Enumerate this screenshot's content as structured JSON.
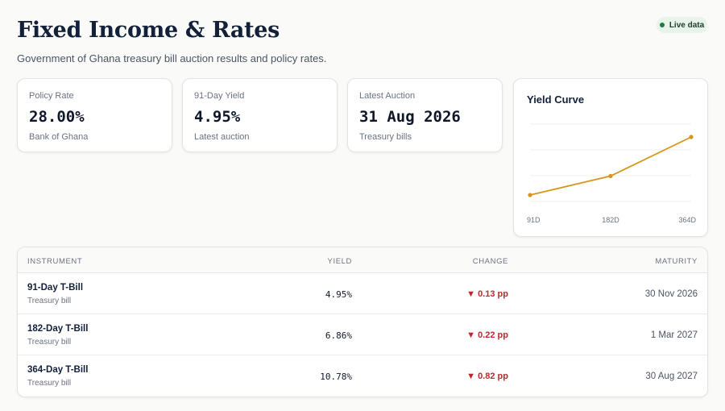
{
  "header": {
    "title": "Fixed Income & Rates",
    "subtitle": "Government of Ghana treasury bill auction results and policy rates.",
    "live_label": "Live data"
  },
  "stats": [
    {
      "label": "Policy Rate",
      "value": "28.00%",
      "sub": "Bank of Ghana"
    },
    {
      "label": "91-Day Yield",
      "value": "4.95%",
      "sub": "Latest auction"
    },
    {
      "label": "Latest Auction",
      "value": "31 Aug 2026",
      "sub": "Treasury bills"
    }
  ],
  "chart_data": {
    "type": "line",
    "title": "Yield Curve",
    "categories": [
      "91D",
      "182D",
      "364D"
    ],
    "values": [
      4.95,
      6.86,
      10.78
    ],
    "grid": true,
    "color": "#d4961b"
  },
  "table": {
    "headers": {
      "instrument": "INSTRUMENT",
      "yield": "YIELD",
      "change": "CHANGE",
      "maturity": "MATURITY"
    },
    "change_icon": "triangle-down-icon",
    "rows": [
      {
        "name": "91-Day T-Bill",
        "sub": "Treasury bill",
        "yield": "4.95%",
        "change": "▼ 0.13 pp",
        "maturity": "30 Nov 2026"
      },
      {
        "name": "182-Day T-Bill",
        "sub": "Treasury bill",
        "yield": "6.86%",
        "change": "▼ 0.22 pp",
        "maturity": "1 Mar 2027"
      },
      {
        "name": "364-Day T-Bill",
        "sub": "Treasury bill",
        "yield": "10.78%",
        "change": "▼ 0.82 pp",
        "maturity": "30 Aug 2027"
      }
    ]
  },
  "colors": {
    "accent": "#d4961b",
    "negative": "#c0262d",
    "live": "#1e7a3f"
  }
}
